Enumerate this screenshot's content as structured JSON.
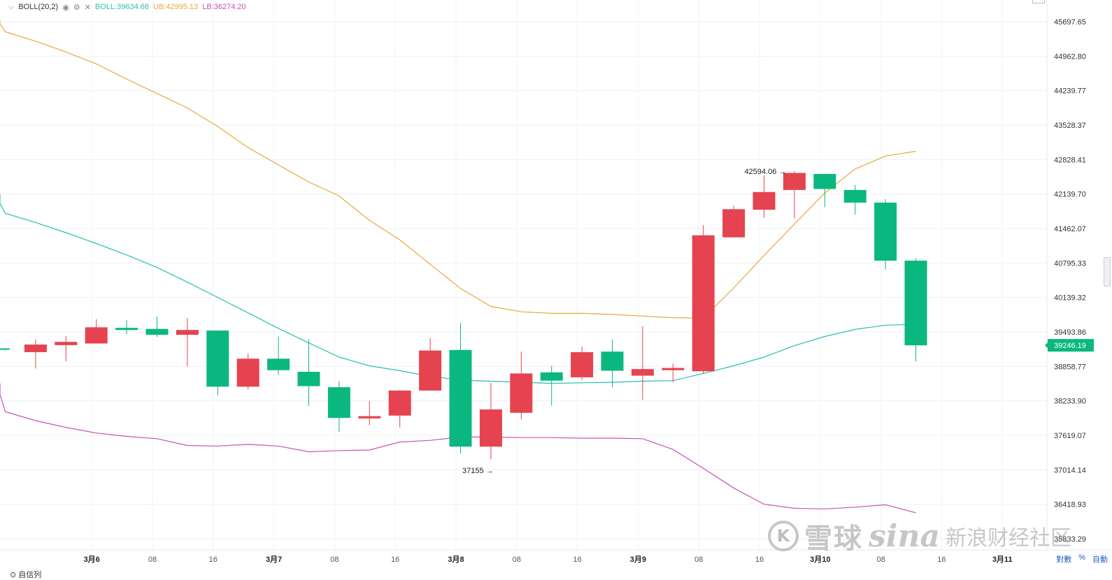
{
  "legend": {
    "indicator": "BOLL(20,2)",
    "mid_label": "BOLL:39634.66",
    "ub_label": "UB:42995.13",
    "lb_label": "LB:36274.20",
    "colors": {
      "mid": "#2bbfb0",
      "ub": "#e7a93a",
      "lb": "#c553b6"
    }
  },
  "bottom": {
    "left_label": "自信列",
    "log_label": "對數",
    "percent_label": "%",
    "auto_label": "自動"
  },
  "watermark": {
    "logo_char": "K",
    "brand1": "雪球",
    "brand2": "sina",
    "brand3": "新浪财经社区"
  },
  "chart_data": {
    "type": "candlestick",
    "title": "",
    "colors": {
      "up": "#e5434f",
      "down": "#0ab87f",
      "price_badge": "#0ab87f"
    },
    "y_axis": {
      "ticks": [
        "45697.65",
        "44962.80",
        "44239.77",
        "43528.37",
        "42828.41",
        "42139.70",
        "41462.07",
        "40795.33",
        "40139.32",
        "39493.86",
        "38858.77",
        "38233.90",
        "37619.07",
        "37014.14",
        "36418.93",
        "35833.29"
      ],
      "current_price": "39246.19"
    },
    "x_axis": {
      "ticks": [
        {
          "label": "3月6",
          "bold": true,
          "index": 2.85
        },
        {
          "label": "08",
          "index": 4.85
        },
        {
          "label": "16",
          "index": 6.85
        },
        {
          "label": "3月7",
          "bold": true,
          "index": 8.85
        },
        {
          "label": "08",
          "index": 10.85
        },
        {
          "label": "16",
          "index": 12.85
        },
        {
          "label": "3月8",
          "bold": true,
          "index": 14.85
        },
        {
          "label": "08",
          "index": 16.85
        },
        {
          "label": "16",
          "index": 18.85
        },
        {
          "label": "3月9",
          "bold": true,
          "index": 20.85
        },
        {
          "label": "08",
          "index": 22.85
        },
        {
          "label": "16",
          "index": 24.85
        },
        {
          "label": "3月10",
          "bold": true,
          "index": 26.85
        },
        {
          "label": "08",
          "index": 28.85
        },
        {
          "label": "16",
          "index": 30.85
        },
        {
          "label": "3月11",
          "bold": true,
          "index": 32.85
        }
      ]
    },
    "candles": [
      {
        "o": 39190,
        "h": 39190,
        "l": 39150,
        "c": 39170
      },
      {
        "o": 39120,
        "h": 39360,
        "l": 38820,
        "c": 39260
      },
      {
        "o": 39250,
        "h": 39420,
        "l": 38950,
        "c": 39310
      },
      {
        "o": 39280,
        "h": 39730,
        "l": 39280,
        "c": 39580
      },
      {
        "o": 39570,
        "h": 39710,
        "l": 39450,
        "c": 39530
      },
      {
        "o": 39550,
        "h": 39780,
        "l": 39400,
        "c": 39440
      },
      {
        "o": 39440,
        "h": 39750,
        "l": 38860,
        "c": 39530
      },
      {
        "o": 39520,
        "h": 39520,
        "l": 38330,
        "c": 38490
      },
      {
        "o": 38490,
        "h": 39090,
        "l": 38440,
        "c": 39000
      },
      {
        "o": 39000,
        "h": 39410,
        "l": 38700,
        "c": 38790
      },
      {
        "o": 38760,
        "h": 39360,
        "l": 38140,
        "c": 38500
      },
      {
        "o": 38480,
        "h": 38590,
        "l": 37680,
        "c": 37930
      },
      {
        "o": 37920,
        "h": 38230,
        "l": 37800,
        "c": 37960
      },
      {
        "o": 37970,
        "h": 38430,
        "l": 37760,
        "c": 38420
      },
      {
        "o": 38420,
        "h": 39380,
        "l": 38420,
        "c": 39150
      },
      {
        "o": 39160,
        "h": 39660,
        "l": 37300,
        "c": 37420
      },
      {
        "o": 37420,
        "h": 38560,
        "l": 37200,
        "c": 38080
      },
      {
        "o": 38020,
        "h": 39130,
        "l": 37900,
        "c": 38730
      },
      {
        "o": 38750,
        "h": 38870,
        "l": 38150,
        "c": 38600
      },
      {
        "o": 38660,
        "h": 39220,
        "l": 38610,
        "c": 39120
      },
      {
        "o": 39130,
        "h": 39350,
        "l": 38480,
        "c": 38780
      },
      {
        "o": 38690,
        "h": 39600,
        "l": 38250,
        "c": 38810
      },
      {
        "o": 38790,
        "h": 38910,
        "l": 38570,
        "c": 38830
      },
      {
        "o": 38770,
        "h": 41530,
        "l": 38720,
        "c": 41330
      },
      {
        "o": 41290,
        "h": 41910,
        "l": 41290,
        "c": 41840
      },
      {
        "o": 41830,
        "h": 42510,
        "l": 41670,
        "c": 42180
      },
      {
        "o": 42220,
        "h": 42594.06,
        "l": 41660,
        "c": 42560
      },
      {
        "o": 42540,
        "h": 42540,
        "l": 41880,
        "c": 42240
      },
      {
        "o": 42220,
        "h": 42320,
        "l": 41730,
        "c": 41970
      },
      {
        "o": 41970,
        "h": 42040,
        "l": 40670,
        "c": 40840
      },
      {
        "o": 40840,
        "h": 40890,
        "l": 38950,
        "c": 39246.19
      }
    ],
    "boll_ub": [
      45720,
      45650,
      45480,
      45280,
      45050,
      44800,
      44480,
      44180,
      43880,
      43500,
      43070,
      42720,
      42380,
      42100,
      41620,
      41240,
      40770,
      40310,
      39970,
      39870,
      39840,
      39840,
      39820,
      39790,
      39760,
      39750,
      40320,
      40940,
      41550,
      42160,
      42640,
      42900,
      42995.13
    ],
    "boll_mid": [
      42140,
      41950,
      41760,
      41580,
      41380,
      41170,
      40950,
      40710,
      40430,
      40140,
      39850,
      39560,
      39290,
      39030,
      38870,
      38780,
      38680,
      38610,
      38590,
      38570,
      38550,
      38560,
      38570,
      38590,
      38600,
      38730,
      38870,
      39030,
      39240,
      39410,
      39540,
      39620,
      39634.66
    ],
    "boll_lb": [
      38550,
      38350,
      38040,
      37880,
      37760,
      37660,
      37600,
      37560,
      37440,
      37430,
      37460,
      37430,
      37330,
      37350,
      37360,
      37500,
      37530,
      37590,
      37590,
      37580,
      37580,
      37570,
      37570,
      37560,
      37370,
      37040,
      36700,
      36420,
      36350,
      36340,
      36370,
      36410,
      36274.2
    ],
    "annotations": [
      {
        "text": "42594.06 →",
        "at_index": 25.85,
        "price": 42594.06,
        "place": "left"
      },
      {
        "text": "37155 →",
        "at_index": 15.85,
        "price": 37155,
        "place": "below"
      }
    ]
  }
}
